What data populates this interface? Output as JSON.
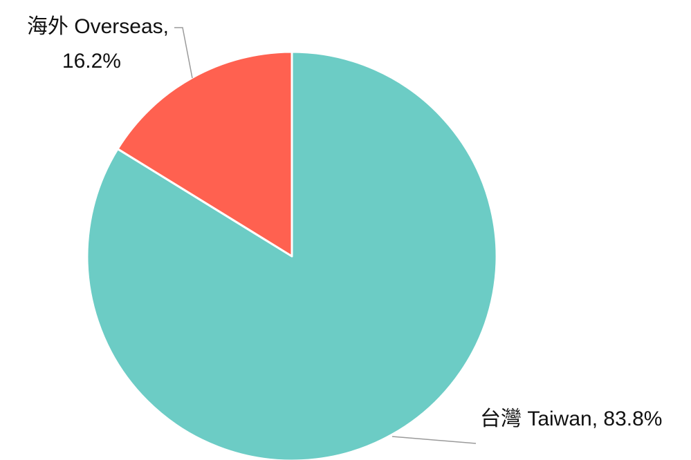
{
  "chart_data": {
    "type": "pie",
    "title": "",
    "slices": [
      {
        "label": "台灣 Taiwan",
        "value": 83.8,
        "value_text": "83.8%",
        "color": "#6CCCC5"
      },
      {
        "label": "海外 Overseas",
        "value": 16.2,
        "value_text": "16.2%",
        "color": "#FF6150"
      }
    ],
    "start_angle": "12 o'clock",
    "direction": "clockwise",
    "legend": "none"
  }
}
